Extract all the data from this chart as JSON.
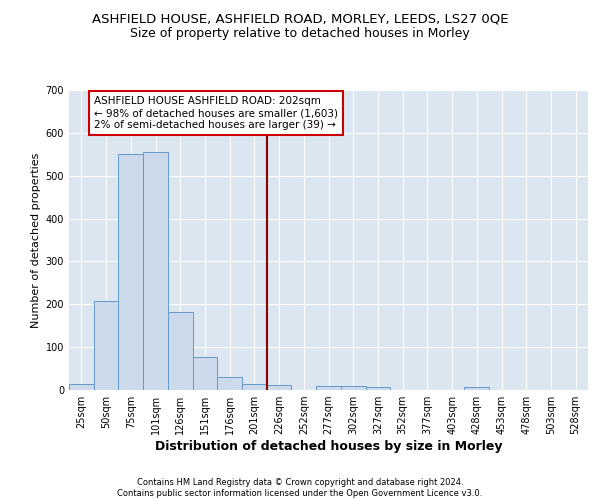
{
  "title1": "ASHFIELD HOUSE, ASHFIELD ROAD, MORLEY, LEEDS, LS27 0QE",
  "title2": "Size of property relative to detached houses in Morley",
  "xlabel": "Distribution of detached houses by size in Morley",
  "ylabel": "Number of detached properties",
  "bar_labels": [
    "25sqm",
    "50sqm",
    "75sqm",
    "101sqm",
    "126sqm",
    "151sqm",
    "176sqm",
    "201sqm",
    "226sqm",
    "252sqm",
    "277sqm",
    "302sqm",
    "327sqm",
    "352sqm",
    "377sqm",
    "403sqm",
    "428sqm",
    "453sqm",
    "478sqm",
    "503sqm",
    "528sqm"
  ],
  "bar_values": [
    13,
    207,
    551,
    556,
    181,
    78,
    30,
    13,
    12,
    0,
    10,
    10,
    6,
    0,
    0,
    0,
    6,
    0,
    0,
    0,
    0
  ],
  "bar_color": "#ccdaeb",
  "bar_edge_color": "#6699cc",
  "vline_color": "#880000",
  "annotation_text": "ASHFIELD HOUSE ASHFIELD ROAD: 202sqm\n← 98% of detached houses are smaller (1,603)\n2% of semi-detached houses are larger (39) →",
  "annotation_box_color": "#ffffff",
  "annotation_edge_color": "#cc0000",
  "ylim": [
    0,
    700
  ],
  "yticks": [
    0,
    100,
    200,
    300,
    400,
    500,
    600,
    700
  ],
  "background_color": "#dce6f0",
  "grid_color": "#ffffff",
  "footer_text": "Contains HM Land Registry data © Crown copyright and database right 2024.\nContains public sector information licensed under the Open Government Licence v3.0.",
  "title1_fontsize": 9.5,
  "title2_fontsize": 9,
  "xlabel_fontsize": 9,
  "ylabel_fontsize": 8,
  "tick_fontsize": 7,
  "annotation_fontsize": 7.5,
  "footer_fontsize": 6
}
